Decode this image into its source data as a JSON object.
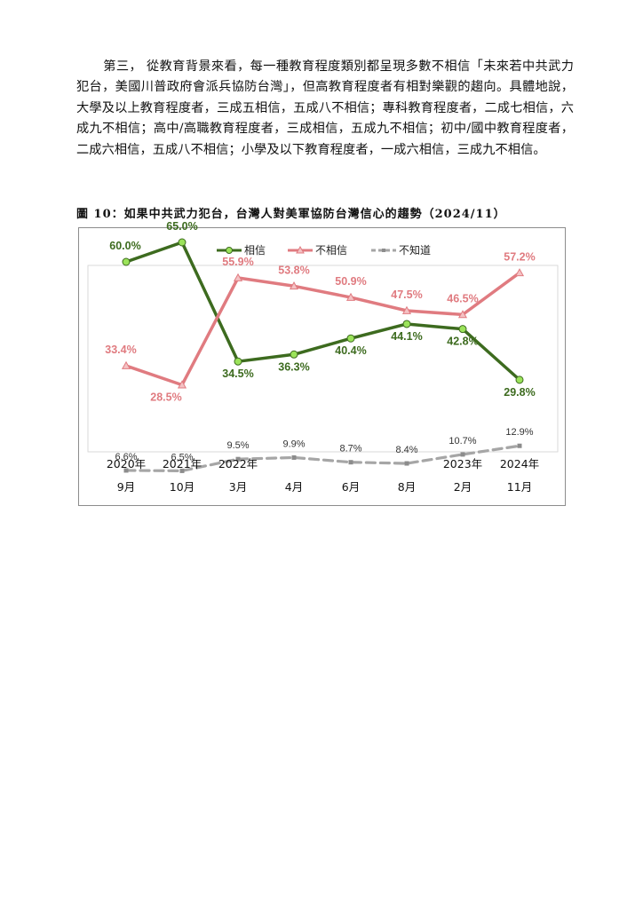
{
  "paragraph": {
    "lead": "第三，",
    "text": "從教育背景來看，每一種教育程度類別都呈現多數不相信「未來若中共武力犯台，美國川普政府會派兵協防台灣」，但高教育程度者有相對樂觀的趨向。具體地說，大學及以上教育程度者，三成五相信，五成八不相信；專科教育程度者，二成七相信，六成九不相信；高中/高職教育程度者，三成相信，五成九不相信；初中/國中教育程度者，二成六相信，五成八不相信；小學及以下教育程度者，一成六相信，三成九不相信。"
  },
  "figure": {
    "caption": "圖 10：如果中共武力犯台，台灣人對美軍協防台灣信心的趨勢（2024/11）"
  },
  "chart_data": {
    "type": "line",
    "x_year": [
      "2020年",
      "2021年",
      "2022年",
      "",
      "",
      "",
      "2023年",
      "2024年"
    ],
    "x_month": [
      "9月",
      "10月",
      "3月",
      "4月",
      "6月",
      "8月",
      "2月",
      "11月"
    ],
    "ylim": [
      0,
      70
    ],
    "legend_position": "top-center",
    "grid": false,
    "series": [
      {
        "name": "相信",
        "color": "#3d6b1f",
        "marker_color": "#9be35a",
        "values": [
          60.0,
          65.0,
          34.5,
          36.3,
          40.4,
          44.1,
          42.8,
          29.8
        ],
        "labels": [
          "60.0%",
          "65.0%",
          "34.5%",
          "36.3%",
          "40.4%",
          "44.1%",
          "42.8%",
          "29.8%"
        ]
      },
      {
        "name": "不相信",
        "color": "#e07b80",
        "marker_color": "#f4c2c4",
        "values": [
          33.4,
          28.5,
          55.9,
          53.8,
          50.9,
          47.5,
          46.5,
          57.2
        ],
        "labels": [
          "33.4%",
          "28.5%",
          "55.9%",
          "53.8%",
          "50.9%",
          "47.5%",
          "46.5%",
          "57.2%"
        ]
      },
      {
        "name": "不知道",
        "color": "#a6a6a6",
        "marker_color": "#8c8c8c",
        "values": [
          6.6,
          6.5,
          9.5,
          9.9,
          8.7,
          8.4,
          10.7,
          12.9
        ],
        "labels": [
          "6.6%",
          "6.5%",
          "9.5%",
          "9.9%",
          "8.7%",
          "8.4%",
          "10.7%",
          "12.9%"
        ]
      }
    ]
  }
}
